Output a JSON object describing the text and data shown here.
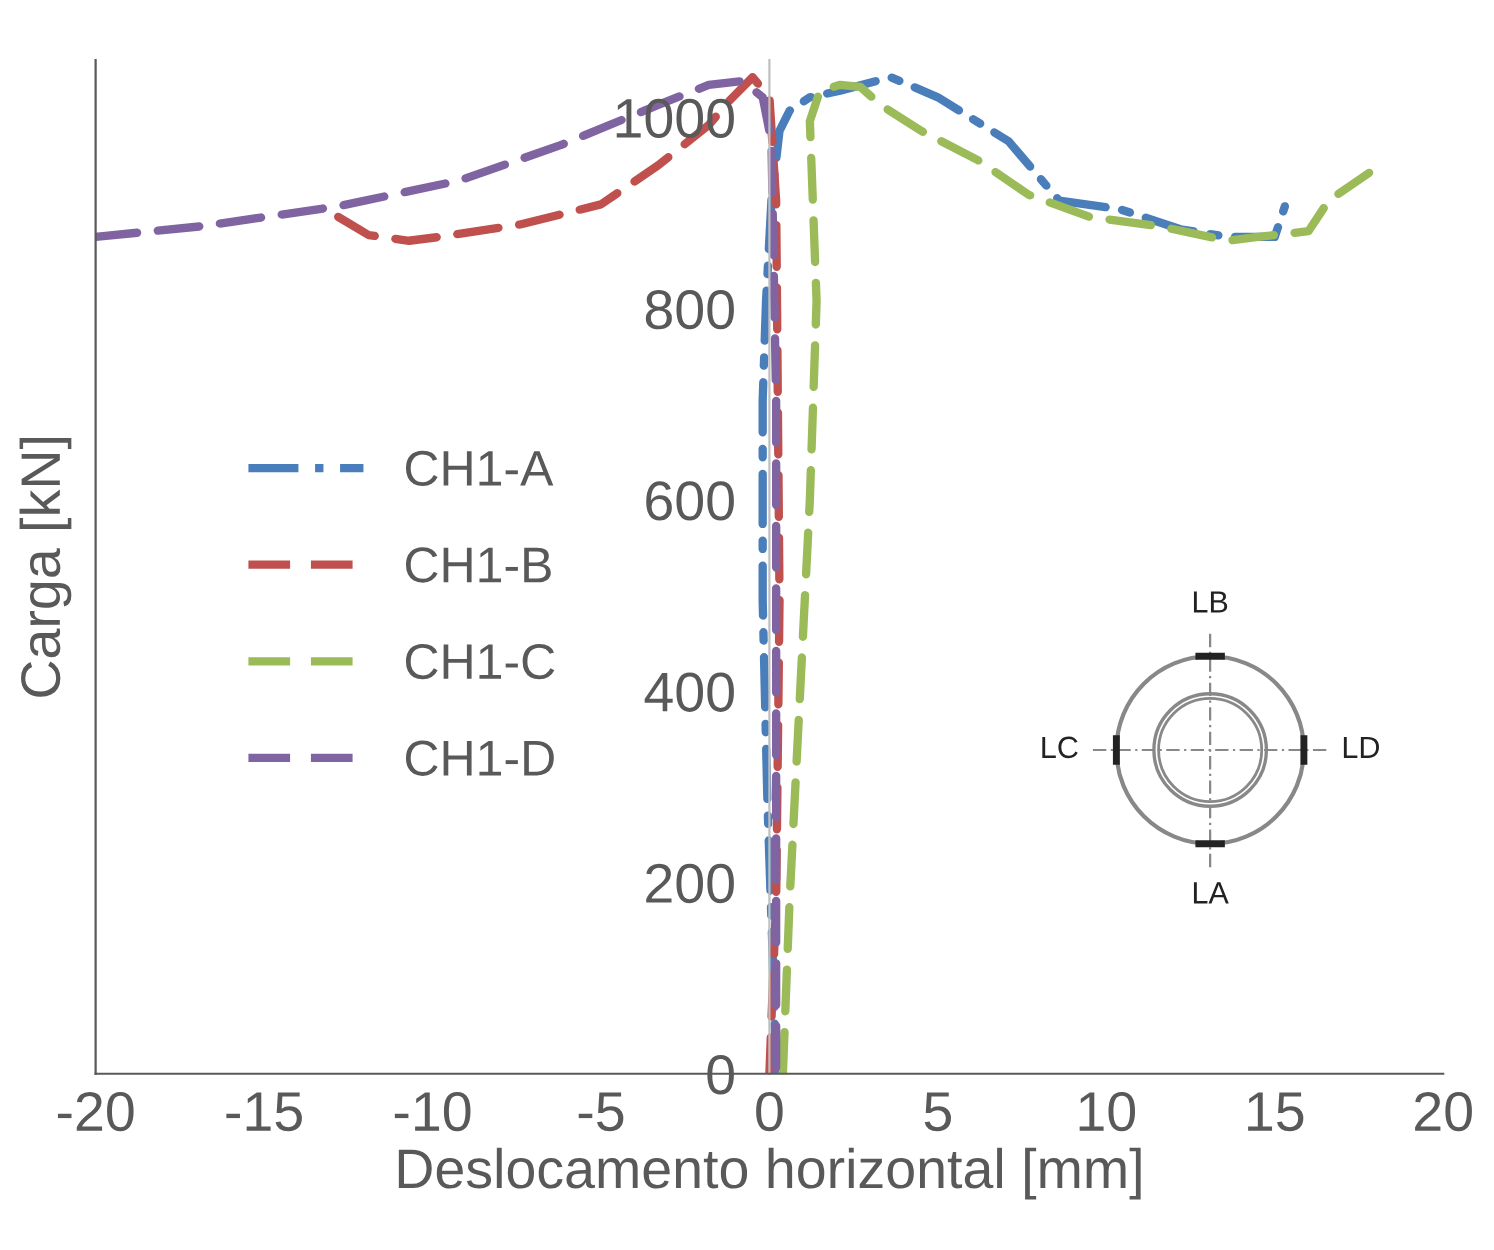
{
  "chart_data": {
    "type": "line",
    "xlabel": "Deslocamento horizontal [mm]",
    "ylabel": "Carga [kN]",
    "xlim": [
      -20,
      20
    ],
    "xticks": [
      -20,
      -15,
      -10,
      -5,
      0,
      5,
      10,
      15,
      20
    ],
    "ylim": [
      0,
      1060
    ],
    "yticks": [
      0,
      200,
      400,
      600,
      800,
      1000
    ],
    "grid": false,
    "legend": "left",
    "marker": "none",
    "annotations": [
      "LB",
      "LA",
      "LC",
      "LD"
    ],
    "series": [
      {
        "name": "CH1-A",
        "color": "#4a7ebb",
        "line_style": "dashdot",
        "x": [
          0.2,
          0.1,
          -0.06,
          -0.2,
          -0.2,
          -0.1,
          0.06,
          0.3,
          0.6,
          1.2,
          2.1,
          3.6,
          5.0,
          7.1,
          8.6,
          10.4,
          12.2,
          13.6,
          15.0,
          15.3
        ],
        "values": [
          0,
          119,
          286,
          495,
          704,
          808,
          913,
          986,
          1007,
          1021,
          1028,
          1042,
          1021,
          975,
          913,
          904,
          883,
          875,
          875,
          907
        ]
      },
      {
        "name": "CH1-B",
        "color": "#c0504d",
        "line_style": "dashed",
        "x": [
          -12.8,
          -11.9,
          -10.7,
          -9.8,
          -7.4,
          -5.0,
          -3.3,
          -1.8,
          -1.2,
          -0.5,
          0,
          0.2,
          0.3,
          0.2,
          0.06,
          0
        ],
        "values": [
          896,
          877,
          871,
          875,
          888,
          909,
          950,
          992,
          1017,
          1042,
          1021,
          913,
          495,
          182,
          56,
          0
        ]
      },
      {
        "name": "CH1-C",
        "color": "#9bbb59",
        "line_style": "dashed",
        "x": [
          0.4,
          0.6,
          0.9,
          1.2,
          1.4,
          1.2,
          1.5,
          2.1,
          2.7,
          3.3,
          4.5,
          6.2,
          7.7,
          9.5,
          11.6,
          13.6,
          14.5,
          16.0,
          16.6,
          17.8
        ],
        "values": [
          0,
          182,
          391,
          600,
          808,
          996,
          1028,
          1034,
          1032,
          1013,
          986,
          955,
          919,
          896,
          886,
          871,
          875,
          881,
          913,
          942
        ]
      },
      {
        "name": "CH1-D",
        "color": "#8064a2",
        "line_style": "dashed",
        "x": [
          -20,
          -16.9,
          -12.8,
          -9.2,
          -6.2,
          -3.3,
          -1.8,
          -0.8,
          -0.2,
          0.06,
          0.2,
          0.2,
          0.2,
          0.2
        ],
        "values": [
          875,
          886,
          907,
          934,
          971,
          1013,
          1034,
          1038,
          1021,
          975,
          704,
          391,
          182,
          0
        ]
      }
    ]
  }
}
